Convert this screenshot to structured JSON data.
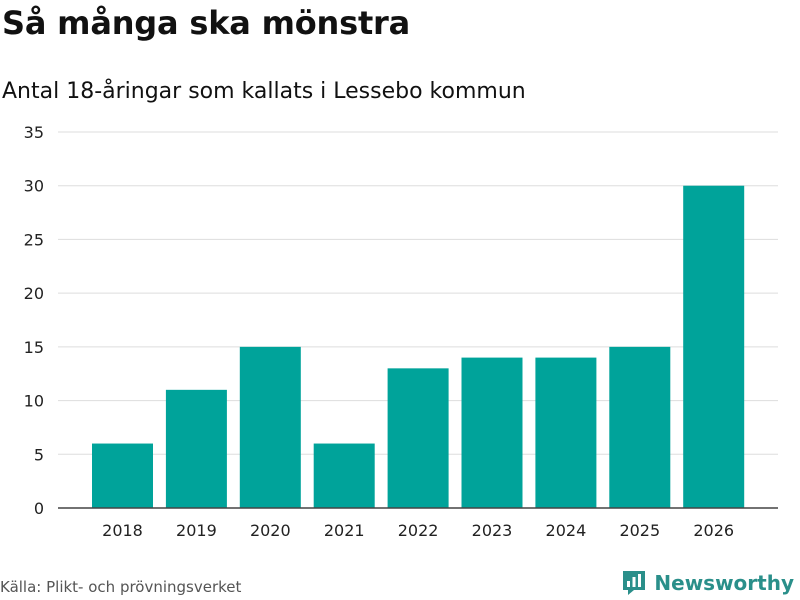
{
  "header": {
    "title": "Så många ska mönstra",
    "subtitle": "Antal 18-åringar som kallats i Lessebo kommun"
  },
  "footer": {
    "source": "Källa: Plikt- och prövningsverket",
    "brand": "Newsworthy"
  },
  "colors": {
    "bar": "#00a39a",
    "grid": "#dddddd",
    "axis": "#444444",
    "brand": "#2a8f8a"
  },
  "chart_data": {
    "type": "bar",
    "title": "Så många ska mönstra",
    "subtitle": "Antal 18-åringar som kallats i Lessebo kommun",
    "xlabel": "",
    "ylabel": "",
    "categories": [
      "2018",
      "2019",
      "2020",
      "2021",
      "2022",
      "2023",
      "2024",
      "2025",
      "2026"
    ],
    "values": [
      6,
      11,
      15,
      6,
      13,
      14,
      14,
      15,
      30
    ],
    "ylim": [
      0,
      35
    ],
    "yticks": [
      0,
      5,
      10,
      15,
      20,
      25,
      30,
      35
    ],
    "grid": true
  }
}
